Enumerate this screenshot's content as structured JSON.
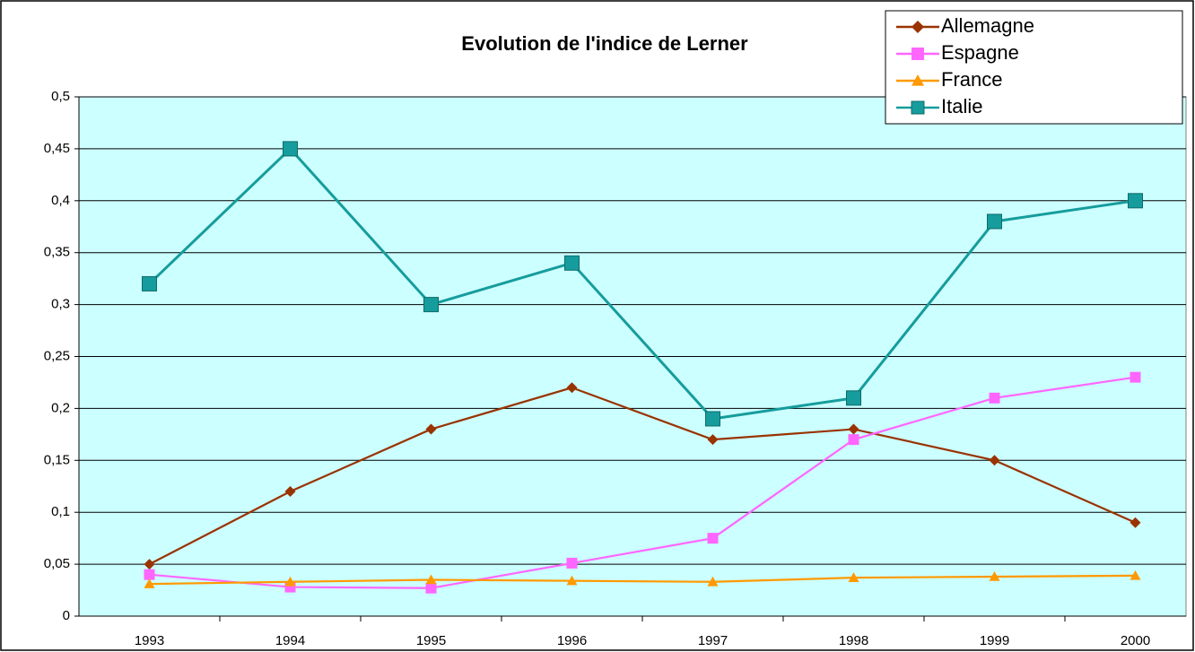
{
  "chart_data": {
    "type": "line",
    "title": "Evolution de l'indice de Lerner",
    "categories": [
      "1993",
      "1994",
      "1995",
      "1996",
      "1997",
      "1998",
      "1999",
      "2000"
    ],
    "series": [
      {
        "name": "Allemagne",
        "color": "#993300",
        "marker": "diamond",
        "values": [
          0.05,
          0.12,
          0.18,
          0.22,
          0.17,
          0.18,
          0.15,
          0.09
        ]
      },
      {
        "name": "Espagne",
        "color": "#ff66ff",
        "marker": "square",
        "values": [
          0.04,
          0.028,
          0.027,
          0.051,
          0.075,
          0.17,
          0.21,
          0.23
        ]
      },
      {
        "name": "France",
        "color": "#ff9900",
        "marker": "triangle",
        "values": [
          0.031,
          0.033,
          0.035,
          0.034,
          0.033,
          0.037,
          0.038,
          0.039
        ]
      },
      {
        "name": "Italie",
        "color": "#169c9c",
        "marker": "square",
        "values": [
          0.32,
          0.45,
          0.3,
          0.34,
          0.19,
          0.21,
          0.38,
          0.4
        ]
      }
    ],
    "ylim": [
      0,
      0.5
    ],
    "yticks": [
      0,
      {
        "value": 0.05,
        "label": "0,05"
      },
      {
        "value": 0.1,
        "label": "0,1"
      },
      {
        "value": 0.15,
        "label": "0,15"
      },
      {
        "value": 0.2,
        "label": "0,2"
      },
      {
        "value": 0.25,
        "label": "0,25"
      },
      {
        "value": 0.3,
        "label": "0,3"
      },
      {
        "value": 0.35,
        "label": "0,35"
      },
      {
        "value": 0.4,
        "label": "0,4"
      },
      {
        "value": 0.45,
        "label": "0,45"
      },
      {
        "value": 0.5,
        "label": "0,5"
      }
    ],
    "grid": true,
    "legend": "top-right",
    "plot_background": "#ccffff"
  }
}
